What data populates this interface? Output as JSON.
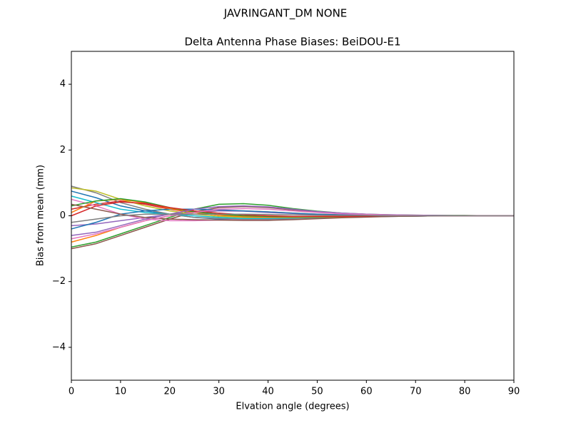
{
  "chart_data": {
    "type": "line",
    "suptitle": "JAVRINGANT_DM   NONE",
    "title": "Delta Antenna Phase Biases: BeiDOU-E1",
    "xlabel": "Elvation angle (degrees)",
    "ylabel": "Bias from mean (mm)",
    "x": [
      0,
      5,
      10,
      15,
      20,
      25,
      30,
      35,
      40,
      45,
      50,
      55,
      60,
      65,
      70,
      75,
      80,
      85,
      90
    ],
    "xlim": [
      0,
      90
    ],
    "xticks": [
      0,
      10,
      20,
      30,
      40,
      50,
      60,
      70,
      80,
      90
    ],
    "ylim": [
      -5,
      5
    ],
    "yticks": [
      {
        "value": -4,
        "label": "−4"
      },
      {
        "value": -2,
        "label": "−2"
      },
      0,
      2,
      4
    ],
    "grid": false,
    "series": [
      {
        "color": "#1f77b4",
        "values": [
          0.75,
          0.55,
          0.3,
          0.15,
          0.05,
          -0.05,
          -0.1,
          -0.12,
          -0.12,
          -0.1,
          -0.07,
          -0.05,
          -0.03,
          -0.02,
          -0.01,
          0,
          0,
          0,
          0
        ]
      },
      {
        "color": "#ff7f0e",
        "values": [
          -0.8,
          -0.6,
          -0.35,
          -0.15,
          0.0,
          0.1,
          0.15,
          0.15,
          0.12,
          0.08,
          0.05,
          0.03,
          0.02,
          0.01,
          0.01,
          0,
          0,
          0,
          0
        ]
      },
      {
        "color": "#2ca02c",
        "values": [
          -0.95,
          -0.8,
          -0.55,
          -0.3,
          -0.05,
          0.2,
          0.35,
          0.37,
          0.32,
          0.22,
          0.14,
          0.08,
          0.05,
          0.03,
          0.02,
          0.01,
          0.01,
          0,
          0
        ]
      },
      {
        "color": "#d62728",
        "values": [
          0.2,
          0.35,
          0.45,
          0.35,
          0.2,
          0.1,
          0.02,
          -0.03,
          -0.05,
          -0.05,
          -0.04,
          -0.03,
          -0.02,
          -0.01,
          0,
          0,
          0,
          0,
          0
        ]
      },
      {
        "color": "#9467bd",
        "values": [
          -0.3,
          -0.25,
          -0.15,
          -0.05,
          0.05,
          0.12,
          0.15,
          0.14,
          0.1,
          0.07,
          0.04,
          0.02,
          0.01,
          0,
          0,
          0,
          0,
          0,
          0
        ]
      },
      {
        "color": "#8c564b",
        "values": [
          -1.0,
          -0.85,
          -0.6,
          -0.35,
          -0.1,
          0.12,
          0.25,
          0.28,
          0.25,
          0.18,
          0.12,
          0.07,
          0.04,
          0.02,
          0.01,
          0,
          0,
          0,
          0
        ]
      },
      {
        "color": "#e377c2",
        "values": [
          0.5,
          0.3,
          0.05,
          -0.1,
          -0.15,
          -0.15,
          -0.13,
          -0.12,
          -0.11,
          -0.09,
          -0.07,
          -0.05,
          -0.03,
          -0.02,
          -0.01,
          0,
          0,
          0,
          0
        ]
      },
      {
        "color": "#7f7f7f",
        "values": [
          0.9,
          0.7,
          0.4,
          0.2,
          0.05,
          -0.05,
          -0.08,
          -0.1,
          -0.1,
          -0.08,
          -0.06,
          -0.04,
          -0.03,
          -0.02,
          -0.01,
          0,
          0,
          0,
          0
        ]
      },
      {
        "color": "#bcbd22",
        "values": [
          0.85,
          0.75,
          0.5,
          0.3,
          0.15,
          0.05,
          -0.02,
          -0.05,
          -0.06,
          -0.05,
          -0.04,
          -0.03,
          -0.02,
          -0.01,
          0,
          0,
          0,
          0,
          0
        ]
      },
      {
        "color": "#17becf",
        "values": [
          0.6,
          0.4,
          0.2,
          0.1,
          0.05,
          0.0,
          -0.05,
          -0.08,
          -0.08,
          -0.07,
          -0.05,
          -0.03,
          -0.02,
          -0.01,
          0,
          0,
          0,
          0,
          0
        ]
      },
      {
        "color": "#1f77b4",
        "values": [
          -0.4,
          -0.2,
          0.05,
          0.15,
          0.2,
          0.2,
          0.18,
          0.15,
          0.12,
          0.08,
          0.05,
          0.03,
          0.02,
          0.01,
          0,
          0,
          0,
          0,
          0
        ]
      },
      {
        "color": "#ff7f0e",
        "values": [
          0.1,
          0.45,
          0.5,
          0.4,
          0.22,
          0.1,
          0.02,
          -0.03,
          -0.05,
          -0.05,
          -0.04,
          -0.03,
          -0.02,
          -0.01,
          0,
          0,
          0,
          0,
          0
        ]
      },
      {
        "color": "#2ca02c",
        "values": [
          0.3,
          0.45,
          0.52,
          0.42,
          0.25,
          0.12,
          0.05,
          0.0,
          -0.02,
          -0.03,
          -0.03,
          -0.02,
          -0.01,
          -0.01,
          0,
          0,
          0,
          0,
          0
        ]
      },
      {
        "color": "#d62728",
        "values": [
          0.0,
          0.3,
          0.42,
          0.38,
          0.25,
          0.15,
          0.08,
          0.03,
          0.0,
          -0.02,
          -0.02,
          -0.02,
          -0.01,
          -0.01,
          0,
          0,
          0,
          0,
          0
        ]
      },
      {
        "color": "#9467bd",
        "values": [
          -0.6,
          -0.5,
          -0.3,
          -0.1,
          0.05,
          0.2,
          0.28,
          0.3,
          0.27,
          0.2,
          0.13,
          0.08,
          0.05,
          0.03,
          0.02,
          0.01,
          0,
          0,
          0
        ]
      },
      {
        "color": "#8c564b",
        "values": [
          0.35,
          0.2,
          0.05,
          -0.05,
          -0.1,
          -0.12,
          -0.13,
          -0.14,
          -0.14,
          -0.12,
          -0.09,
          -0.06,
          -0.04,
          -0.02,
          -0.01,
          0,
          0,
          0,
          0
        ]
      },
      {
        "color": "#e377c2",
        "values": [
          -0.7,
          -0.55,
          -0.35,
          -0.15,
          0.0,
          0.1,
          0.2,
          0.22,
          0.2,
          0.15,
          0.1,
          0.06,
          0.04,
          0.02,
          0.01,
          0,
          0,
          0,
          0
        ]
      },
      {
        "color": "#7f7f7f",
        "values": [
          -0.2,
          -0.1,
          0.0,
          0.05,
          0.05,
          0.05,
          0.05,
          0.05,
          0.04,
          0.03,
          0.02,
          0.01,
          0.01,
          0,
          0,
          0,
          0,
          0,
          0
        ]
      }
    ]
  }
}
